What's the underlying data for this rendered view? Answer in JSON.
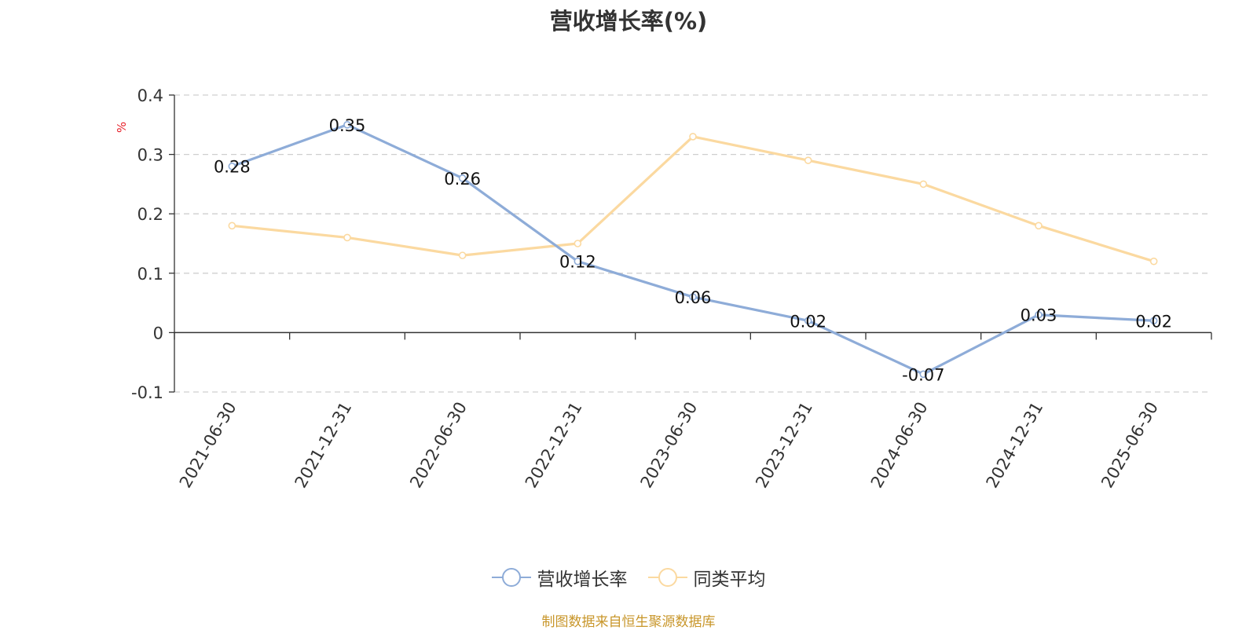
{
  "chart_data": {
    "type": "line",
    "title": "营收增长率(%)",
    "ylabel": "%",
    "x": [
      "2021-06-30",
      "2021-12-31",
      "2022-06-30",
      "2022-12-31",
      "2023-06-30",
      "2023-12-31",
      "2024-06-30",
      "2024-12-31",
      "2025-06-30"
    ],
    "ylim": [
      -0.1,
      0.4
    ],
    "yticks": [
      -0.1,
      0,
      0.1,
      0.2,
      0.3,
      0.4
    ],
    "grid": true,
    "legend_position": "bottom",
    "series": [
      {
        "name": "营收增长率",
        "color": "#8eacd8",
        "values": [
          0.28,
          0.35,
          0.26,
          0.12,
          0.06,
          0.02,
          -0.07,
          0.03,
          0.02
        ],
        "data_labels": true
      },
      {
        "name": "同类平均",
        "color": "#fbd9a0",
        "values": [
          0.18,
          0.16,
          0.13,
          0.15,
          0.33,
          0.29,
          0.25,
          0.18,
          0.12
        ],
        "data_labels": false
      }
    ]
  },
  "legend": {
    "items": [
      "营收增长率",
      "同类平均"
    ]
  },
  "footer": {
    "source": "制图数据来自恒生聚源数据库"
  }
}
